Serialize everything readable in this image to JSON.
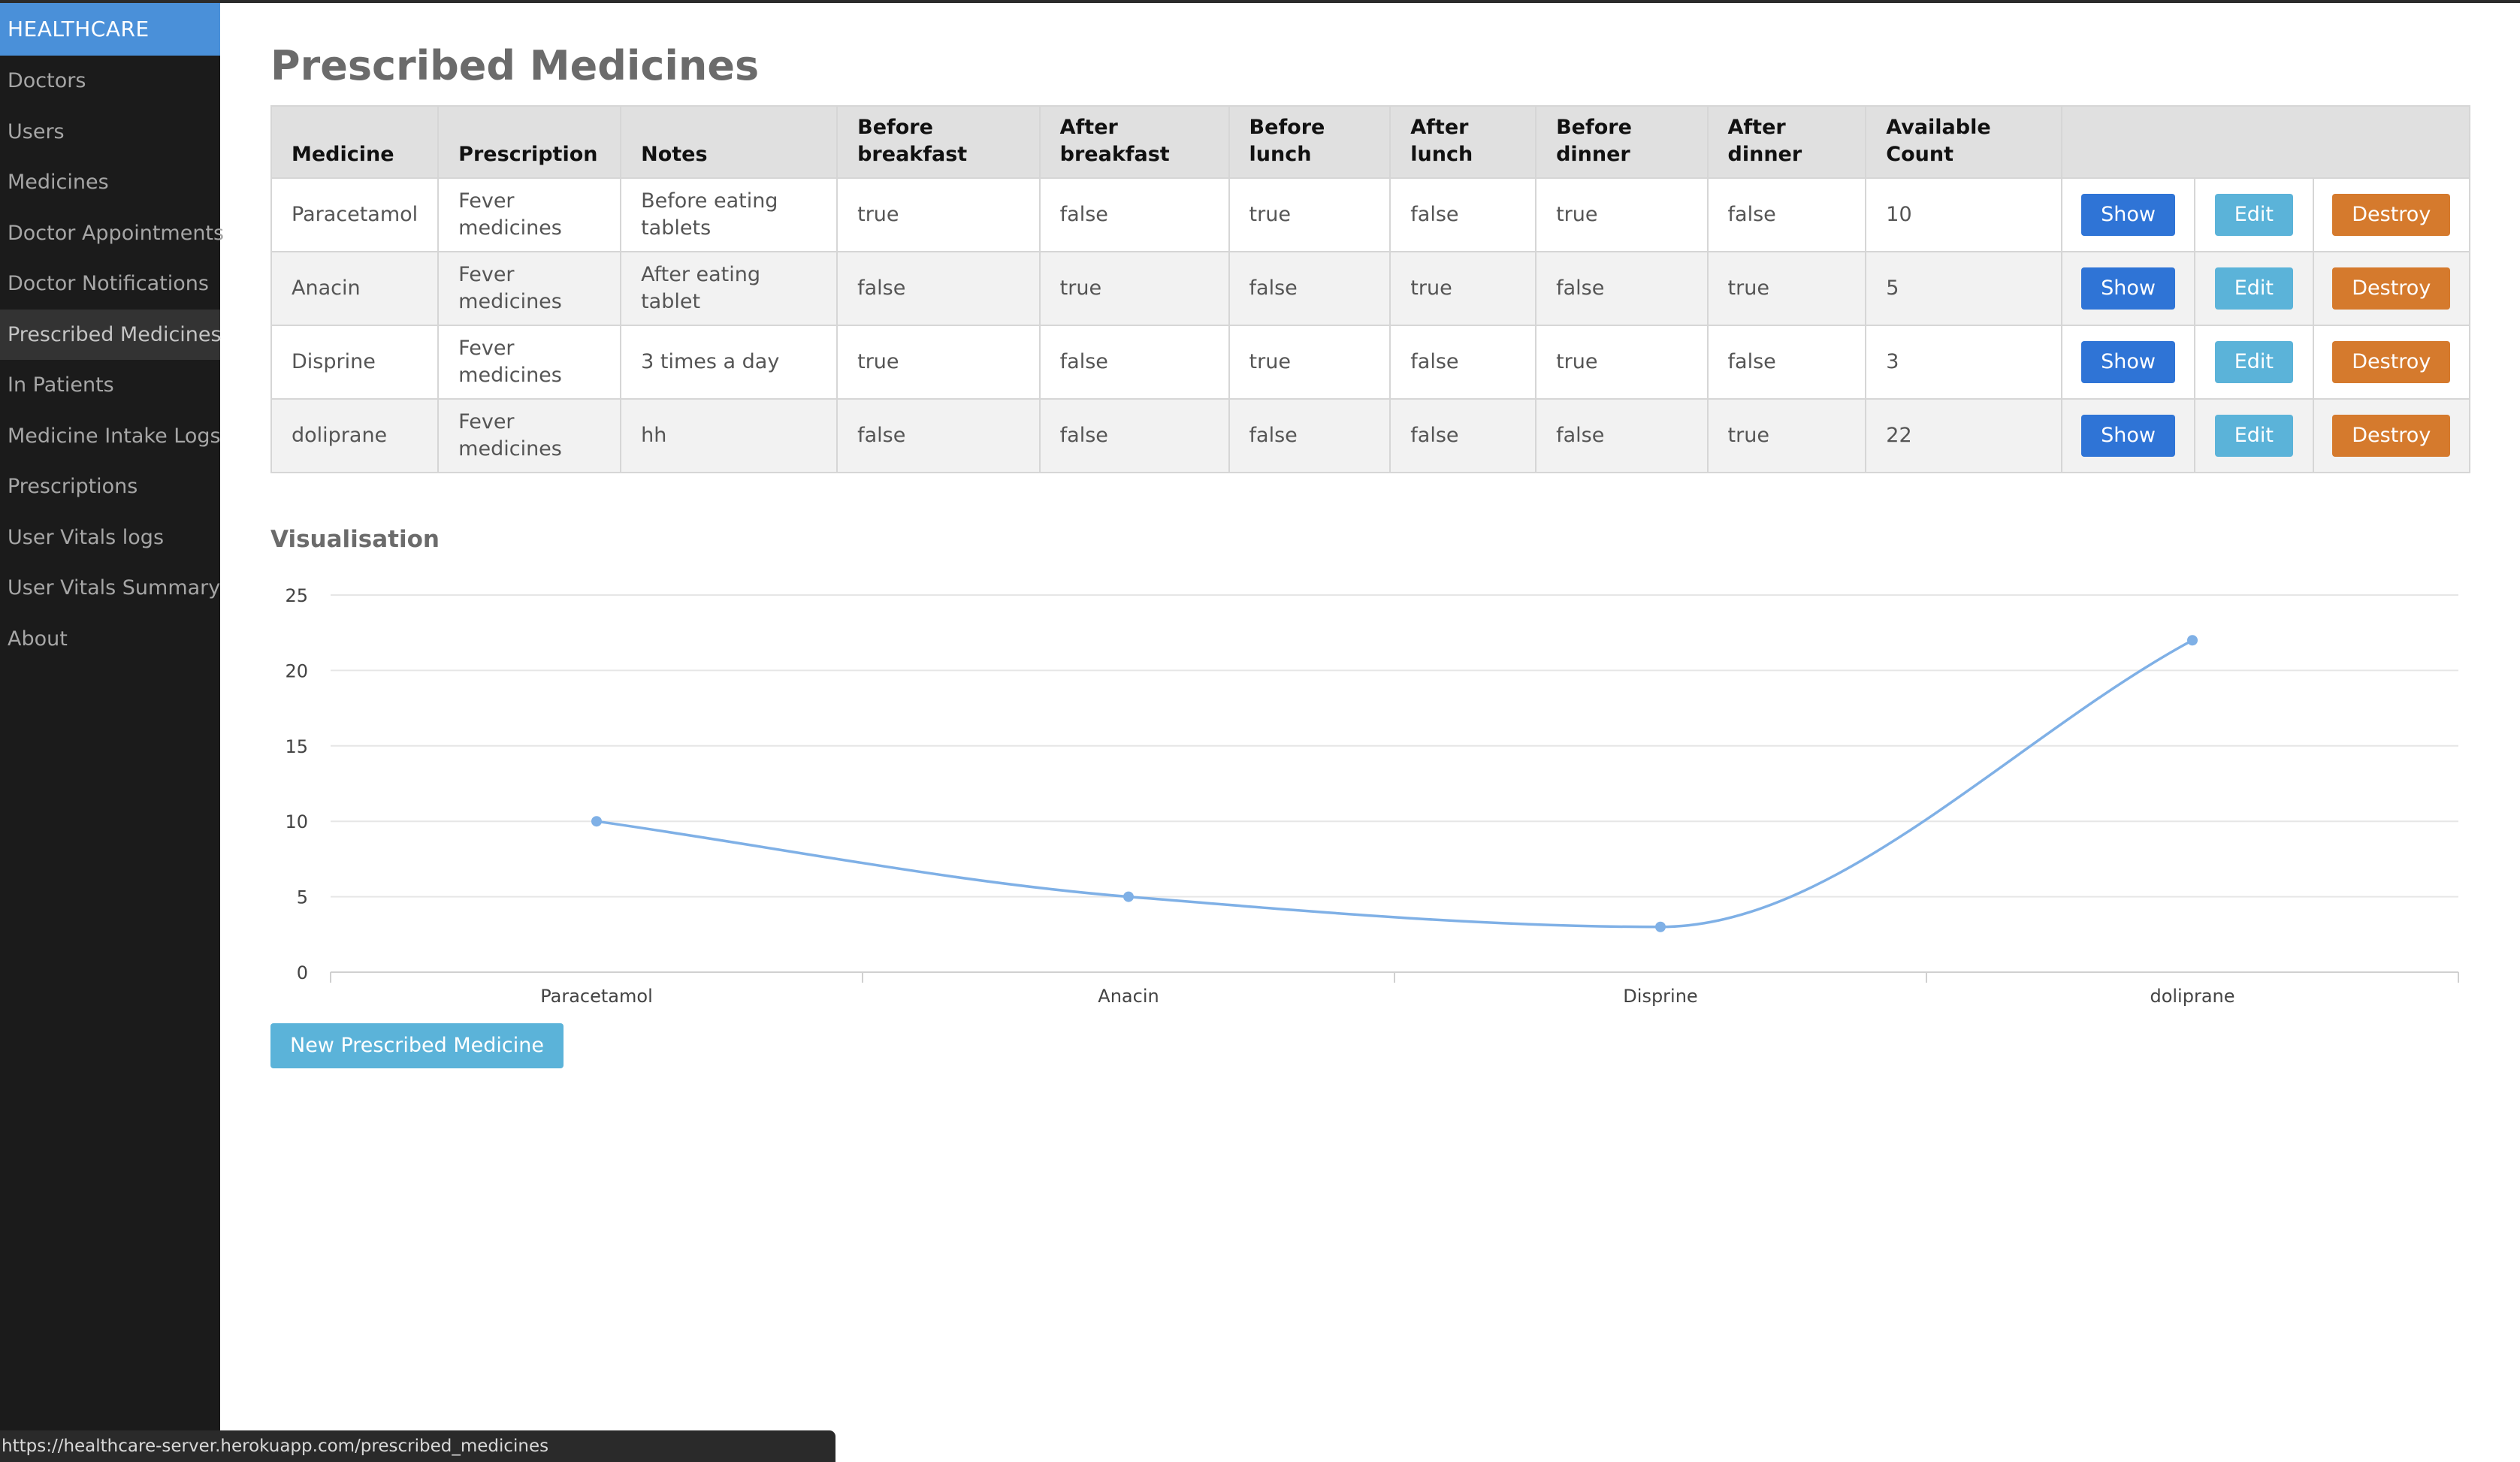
{
  "sidebar": {
    "brand": "HEALTHCARE",
    "items": [
      {
        "label": "Doctors"
      },
      {
        "label": "Users"
      },
      {
        "label": "Medicines"
      },
      {
        "label": "Doctor Appointments"
      },
      {
        "label": "Doctor Notifications"
      },
      {
        "label": "Prescribed Medicines",
        "active": true
      },
      {
        "label": "In Patients"
      },
      {
        "label": "Medicine Intake Logs"
      },
      {
        "label": "Prescriptions"
      },
      {
        "label": "User Vitals logs"
      },
      {
        "label": "User Vitals Summary"
      },
      {
        "label": "About"
      }
    ]
  },
  "page": {
    "title": "Prescribed Medicines",
    "visualisation_title": "Visualisation",
    "new_button": "New Prescribed Medicine"
  },
  "table": {
    "headers": [
      "Medicine",
      "Prescription",
      "Notes",
      "Before breakfast",
      "After breakfast",
      "Before lunch",
      "After lunch",
      "Before dinner",
      "After dinner",
      "Available Count"
    ],
    "action_labels": {
      "show": "Show",
      "edit": "Edit",
      "destroy": "Destroy"
    },
    "rows": [
      [
        "Paracetamol",
        "Fever medicines",
        "Before eating tablets",
        "true",
        "false",
        "true",
        "false",
        "true",
        "false",
        "10"
      ],
      [
        "Anacin",
        "Fever medicines",
        "After eating tablet",
        "false",
        "true",
        "false",
        "true",
        "false",
        "true",
        "5"
      ],
      [
        "Disprine",
        "Fever medicines",
        "3 times a day",
        "true",
        "false",
        "true",
        "false",
        "true",
        "false",
        "3"
      ],
      [
        "doliprane",
        "Fever medicines",
        "hh",
        "false",
        "false",
        "false",
        "false",
        "false",
        "true",
        "22"
      ]
    ]
  },
  "chart_data": {
    "type": "line",
    "categories": [
      "Paracetamol",
      "Anacin",
      "Disprine",
      "doliprane"
    ],
    "values": [
      10,
      5,
      3,
      22
    ],
    "ylim": [
      0,
      25
    ],
    "yticks": [
      0,
      5,
      10,
      15,
      20,
      25
    ],
    "grid": true,
    "smooth": true,
    "line_color": "#7fb0e6"
  },
  "statusbar": {
    "url": "https://healthcare-server.herokuapp.com/prescribed_medicines"
  },
  "colors": {
    "brand": "#4a90d9",
    "sidebar_bg": "#1b1b1b",
    "show": "#2f74d6",
    "edit": "#5bb3d9",
    "destroy": "#d57a2d"
  }
}
